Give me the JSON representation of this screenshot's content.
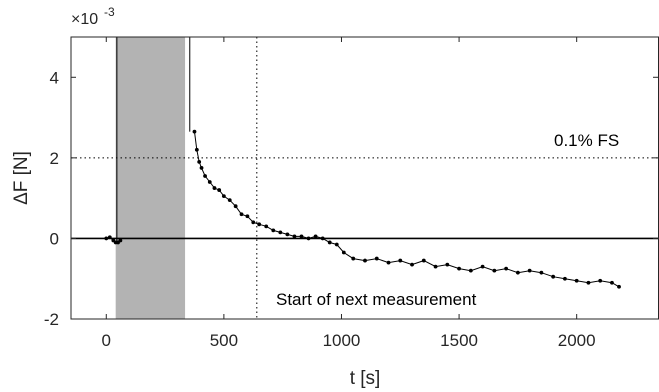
{
  "chart_data": {
    "type": "line",
    "xlabel": "t [s]",
    "ylabel": "ΔF [N]",
    "y_exponent_base": "×10",
    "y_exponent_power": "-3",
    "xlim": [
      -150,
      2350
    ],
    "ylim": [
      -2,
      5
    ],
    "xticks": [
      0,
      500,
      1000,
      1500,
      2000
    ],
    "yticks": [
      -2,
      0,
      2,
      4
    ],
    "grid": false,
    "colors": {
      "series": "#000000",
      "shade": "#b3b3b3",
      "axis": "#262626"
    },
    "shaded_interval": [
      40,
      335
    ],
    "zero_line_y": 0,
    "threshold": {
      "y": 2,
      "label": "0.1% FS"
    },
    "vertical_marker": {
      "x": 640,
      "label": "Start of next measurement"
    },
    "series": [
      {
        "x": [
          0,
          15,
          30,
          40,
          50,
          60,
          375,
          385,
          395,
          405,
          420,
          440,
          460,
          480,
          500,
          525,
          550,
          575,
          600,
          625,
          650,
          680,
          710,
          740,
          770,
          800,
          830,
          860,
          890,
          920,
          950,
          980,
          1010,
          1050,
          1100,
          1150,
          1200,
          1250,
          1300,
          1350,
          1400,
          1450,
          1500,
          1550,
          1600,
          1650,
          1700,
          1750,
          1800,
          1850,
          1900,
          1950,
          2000,
          2050,
          2100,
          2150,
          2180
        ],
        "y": [
          0.0,
          0.03,
          -0.05,
          -0.1,
          -0.1,
          -0.05,
          2.65,
          2.2,
          1.9,
          1.75,
          1.55,
          1.4,
          1.25,
          1.2,
          1.05,
          0.95,
          0.8,
          0.6,
          0.55,
          0.4,
          0.35,
          0.3,
          0.2,
          0.15,
          0.1,
          0.05,
          0.05,
          0.0,
          0.05,
          0.0,
          -0.1,
          -0.15,
          -0.35,
          -0.5,
          -0.55,
          -0.5,
          -0.6,
          -0.55,
          -0.65,
          -0.55,
          -0.7,
          -0.65,
          -0.75,
          -0.8,
          -0.7,
          -0.8,
          -0.75,
          -0.85,
          -0.8,
          -0.85,
          -0.95,
          -1.0,
          -1.05,
          -1.1,
          -1.05,
          -1.1,
          -1.2
        ]
      }
    ],
    "spikes": [
      {
        "x": 45,
        "from": -0.1,
        "to": 5
      },
      {
        "x": 355,
        "from": 2.65,
        "to": 5
      }
    ]
  }
}
